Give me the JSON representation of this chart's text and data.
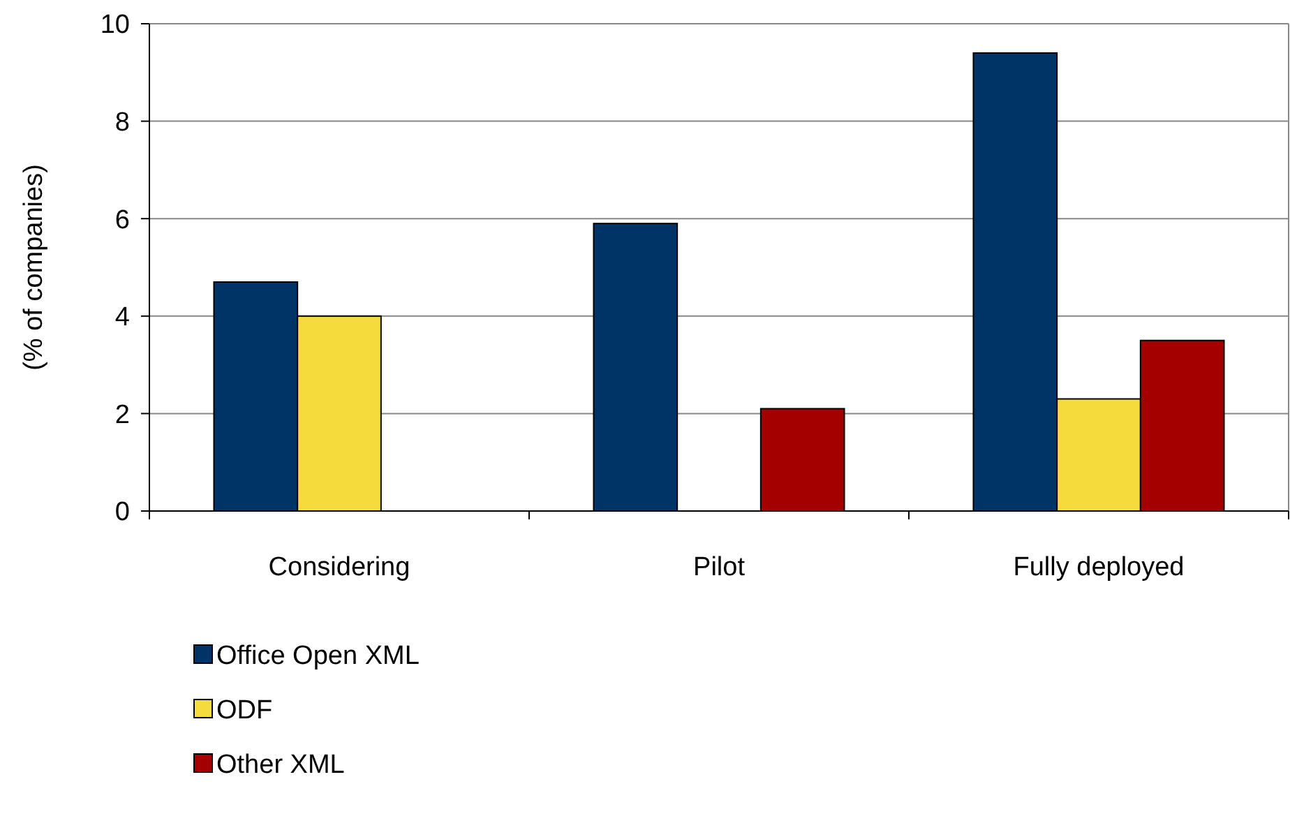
{
  "chart_data": {
    "type": "bar",
    "ylabel": "(% of companies)",
    "categories": [
      "Considering",
      "Pilot",
      "Fully deployed"
    ],
    "series": [
      {
        "name": "Office Open XML",
        "color": "#003366",
        "values": [
          4.7,
          5.9,
          9.4
        ]
      },
      {
        "name": "ODF",
        "color": "#f5dc3c",
        "values": [
          4.0,
          null,
          2.3
        ]
      },
      {
        "name": "Other XML",
        "color": "#a50000",
        "values": [
          null,
          2.1,
          3.5
        ]
      }
    ],
    "ylim": [
      0,
      10
    ],
    "yticks": [
      0,
      2,
      4,
      6,
      8,
      10
    ],
    "grid": "y",
    "legend": "bottom left"
  }
}
